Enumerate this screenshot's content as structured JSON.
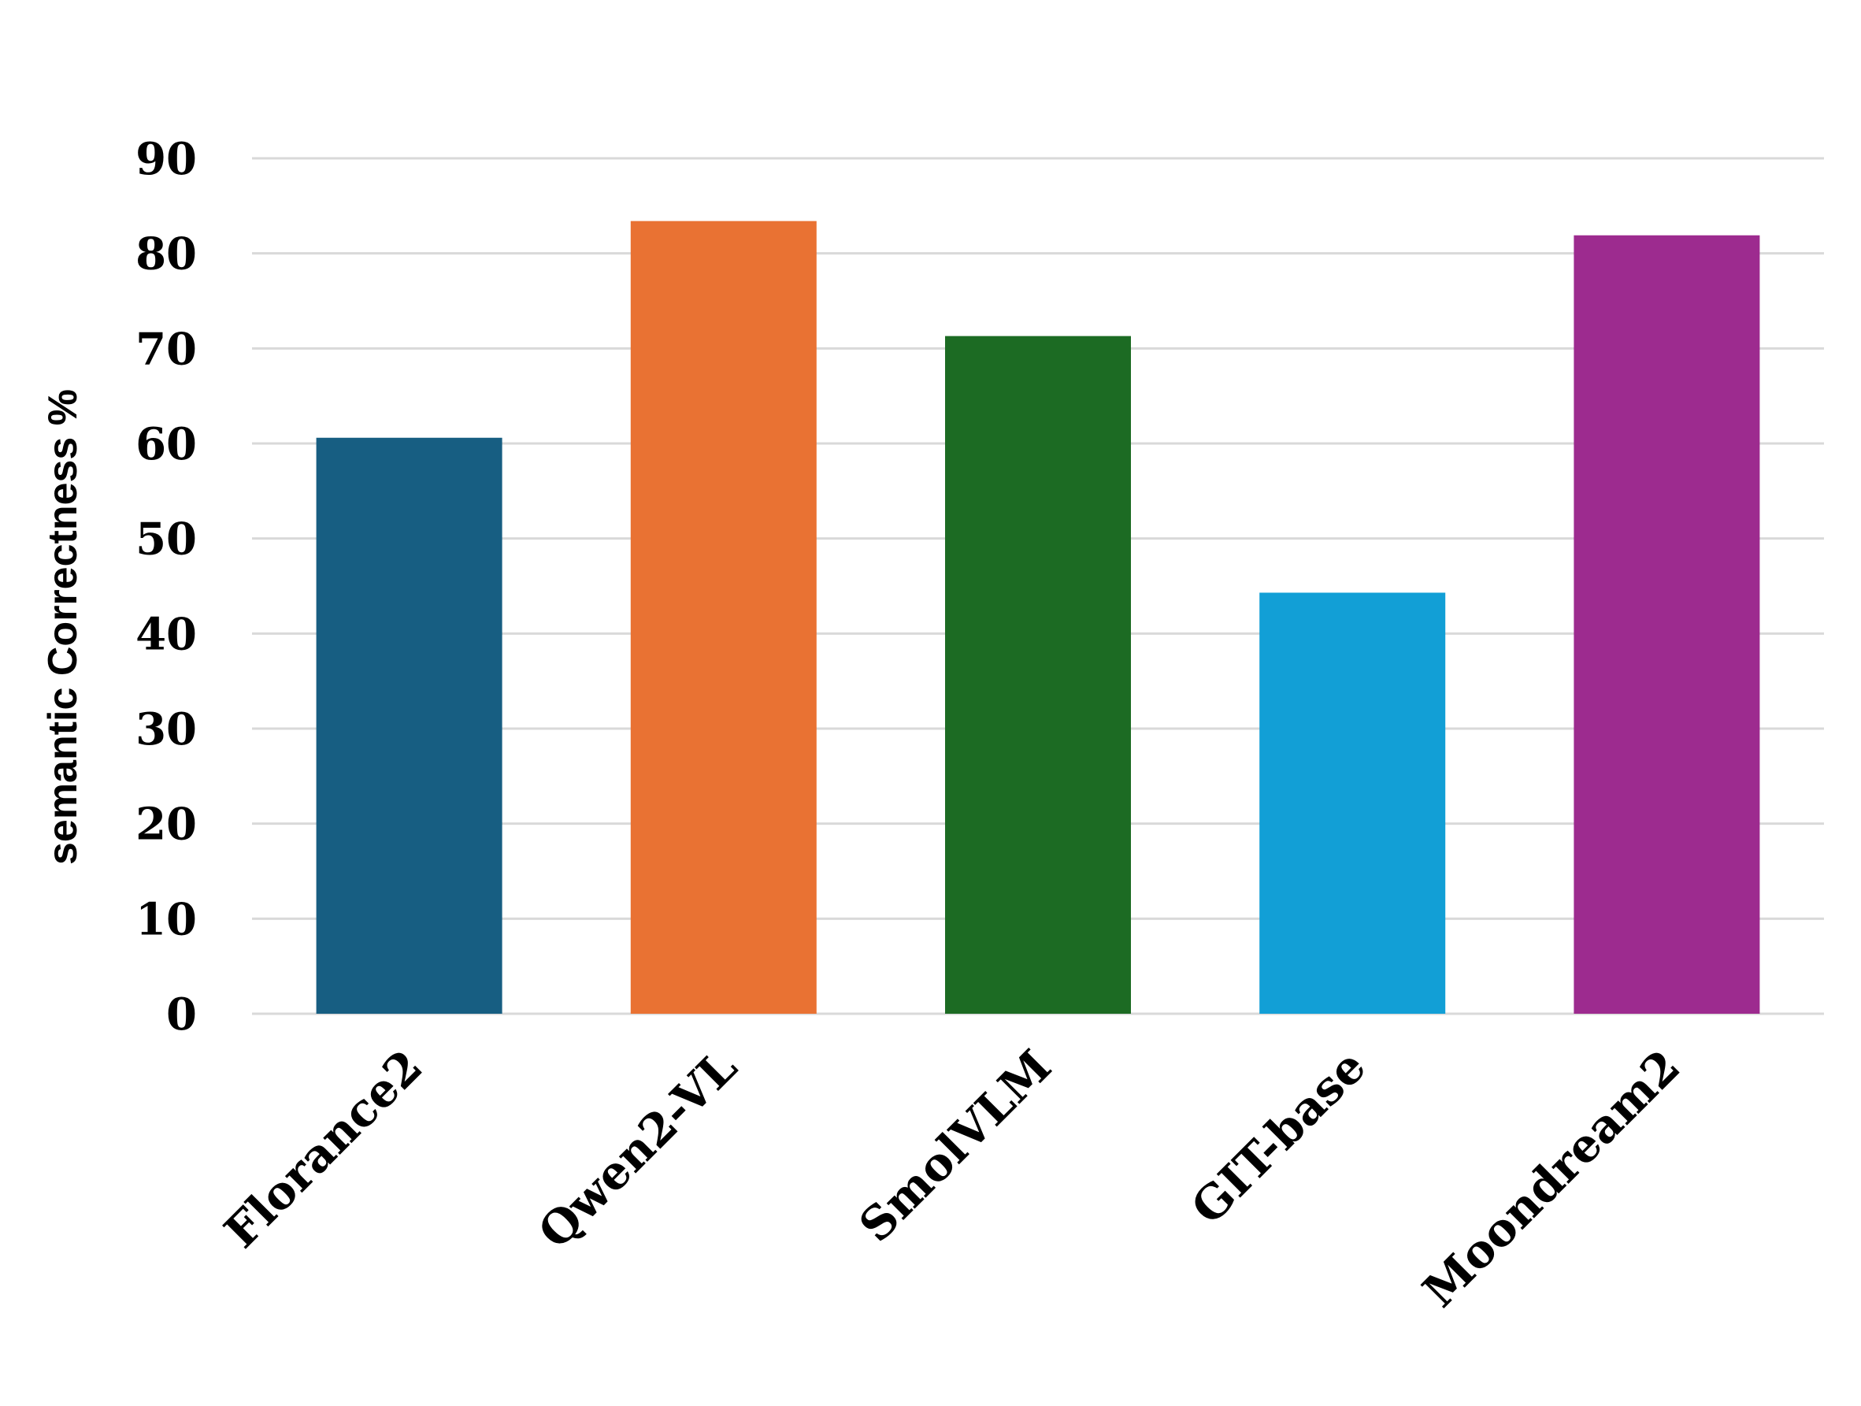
{
  "chart_data": {
    "type": "bar",
    "title": "",
    "xlabel": "",
    "ylabel": "semantic Correctness %",
    "categories": [
      "Florance2",
      "Qwen2-VL",
      "SmolVLM",
      "GIT-base",
      "Moondream2"
    ],
    "values": [
      60.6,
      83.4,
      71.3,
      44.3,
      81.9
    ],
    "colors": [
      "#175e82",
      "#e97233",
      "#1c6b23",
      "#129fd6",
      "#9d2b8f"
    ],
    "ylim": [
      0,
      90
    ],
    "yticks": [
      0,
      10,
      20,
      30,
      40,
      50,
      60,
      70,
      80,
      90
    ],
    "grid": true,
    "legend": "none"
  }
}
